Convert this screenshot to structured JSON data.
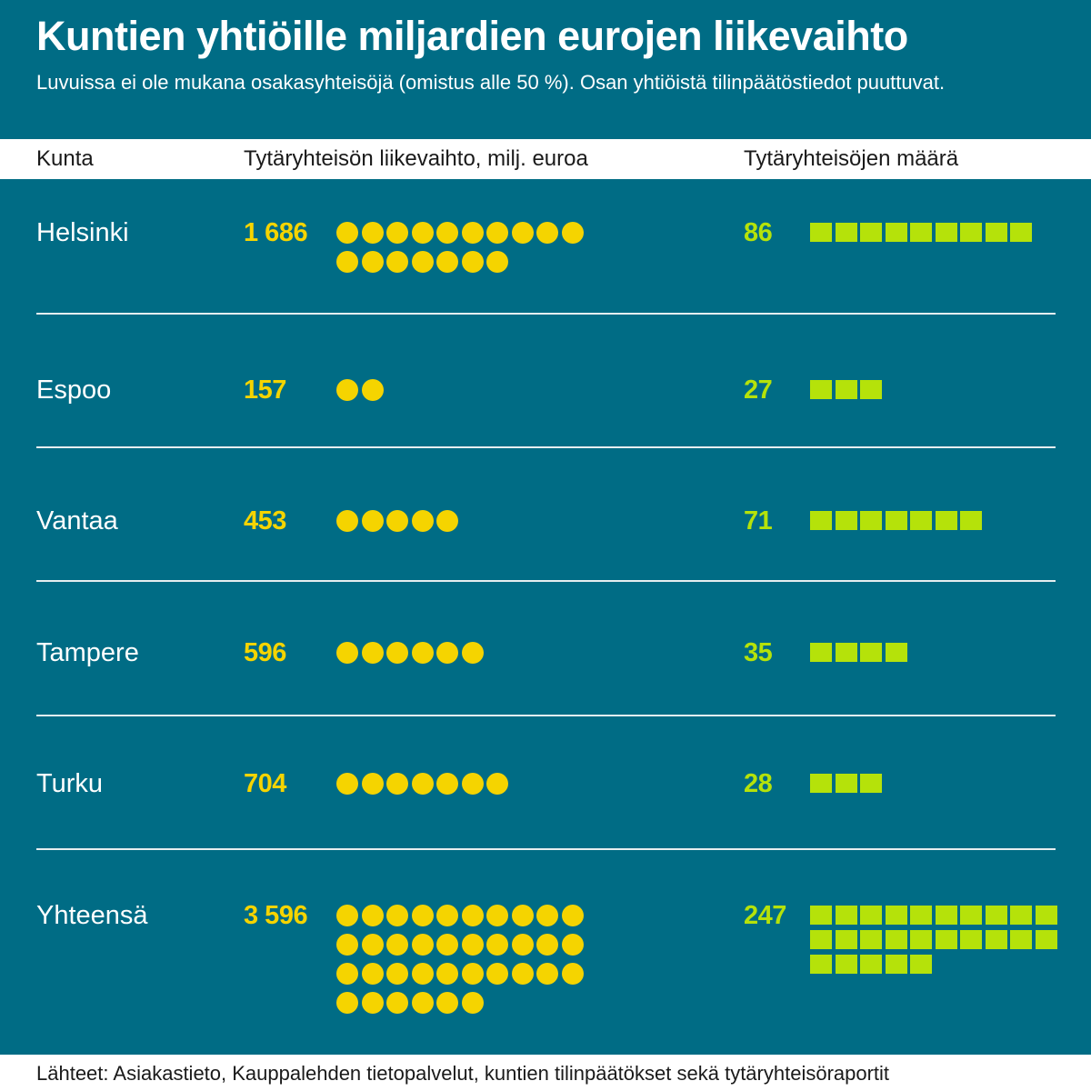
{
  "title": "Kuntien yhtiöille miljardien eurojen liikevaihto",
  "subtitle": "Luvuissa ei ole mukana osakasyhteisöjä (omistus alle 50 %). Osan yhtiöistä tilinpäätöstiedot puuttuvat.",
  "header": {
    "col_municipality": "Kunta",
    "col_revenue": "Tytäryhteisön liikevaihto, milj. euroa",
    "col_count": "Tytäryhteisöjen määrä"
  },
  "footer": "Lähteet: Asiakastieto, Kauppalehden tietopalvelut, kuntien tilinpäätökset sekä tytäryhteisöraportit",
  "colors": {
    "background": "#006c85",
    "revenue": "#f5d400",
    "count": "#b5e20a"
  },
  "chart_data": {
    "type": "table",
    "title": "Kuntien yhtiöille miljardien eurojen liikevaihto",
    "columns": [
      "Kunta",
      "Tytäryhteisön liikevaihto, milj. euroa",
      "Tytäryhteisöjen määrä"
    ],
    "rows": [
      {
        "name": "Helsinki",
        "revenue_label": "1 686",
        "revenue": 1686,
        "revenue_dots": 17,
        "count_label": "86",
        "count": 86,
        "count_squares": 9
      },
      {
        "name": "Espoo",
        "revenue_label": "157",
        "revenue": 157,
        "revenue_dots": 2,
        "count_label": "27",
        "count": 27,
        "count_squares": 3
      },
      {
        "name": "Vantaa",
        "revenue_label": "453",
        "revenue": 453,
        "revenue_dots": 5,
        "count_label": "71",
        "count": 71,
        "count_squares": 7
      },
      {
        "name": "Tampere",
        "revenue_label": "596",
        "revenue": 596,
        "revenue_dots": 6,
        "count_label": "35",
        "count": 35,
        "count_squares": 4
      },
      {
        "name": "Turku",
        "revenue_label": "704",
        "revenue": 704,
        "revenue_dots": 7,
        "count_label": "28",
        "count": 28,
        "count_squares": 3
      },
      {
        "name": "Yhteensä",
        "revenue_label": "3 596",
        "revenue": 3596,
        "revenue_dots": 36,
        "count_label": "247",
        "count": 247,
        "count_squares": 25
      }
    ]
  }
}
